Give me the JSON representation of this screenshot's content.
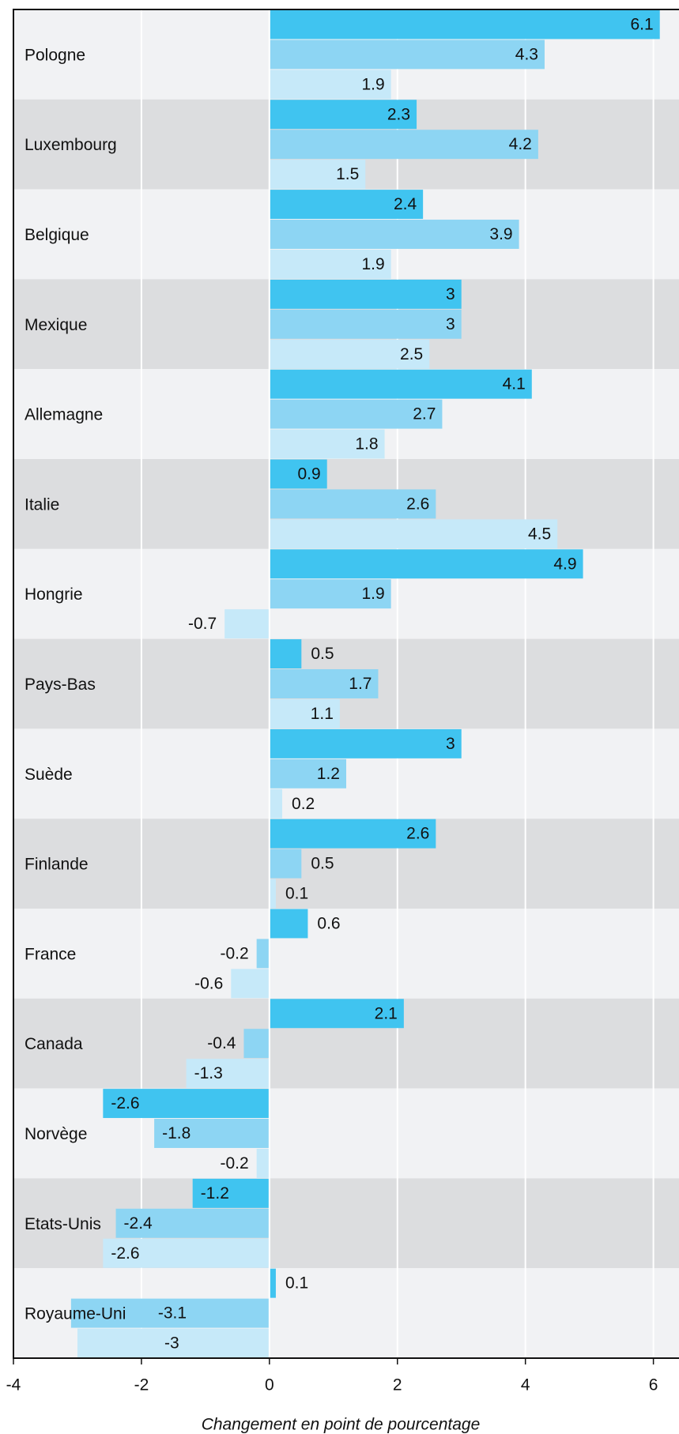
{
  "chart_data": {
    "type": "bar",
    "orientation": "horizontal",
    "x_label": "Changement en point de pourcentage",
    "categories": [
      "Pologne",
      "Luxembourg",
      "Belgique",
      "Mexique",
      "Allemagne",
      "Italie",
      "Hongrie",
      "Pays-Bas",
      "Suède",
      "Finlande",
      "France",
      "Canada",
      "Norvège",
      "Etats-Unis",
      "Royaume-Uni"
    ],
    "series": [
      {
        "color": "#40c4f0",
        "values": [
          6.1,
          2.3,
          2.4,
          3,
          4.1,
          0.9,
          4.9,
          0.5,
          3,
          2.6,
          0.6,
          2.1,
          -2.6,
          -1.2,
          0.1
        ]
      },
      {
        "color": "#8dd5f3",
        "values": [
          4.3,
          4.2,
          3.9,
          3,
          2.7,
          2.6,
          1.9,
          1.7,
          1.2,
          0.5,
          -0.2,
          -0.4,
          -1.8,
          -2.4,
          -3.1
        ]
      },
      {
        "color": "#c6e9f9",
        "values": [
          1.9,
          1.5,
          1.9,
          2.5,
          1.8,
          4.5,
          -0.7,
          1.1,
          0.2,
          0.1,
          -0.6,
          -1.3,
          -0.2,
          -2.6,
          -3
        ]
      }
    ],
    "xlim": [
      -4,
      6.4
    ],
    "xticks": [
      -4,
      -2,
      0,
      2,
      4,
      6
    ],
    "grid": true
  }
}
